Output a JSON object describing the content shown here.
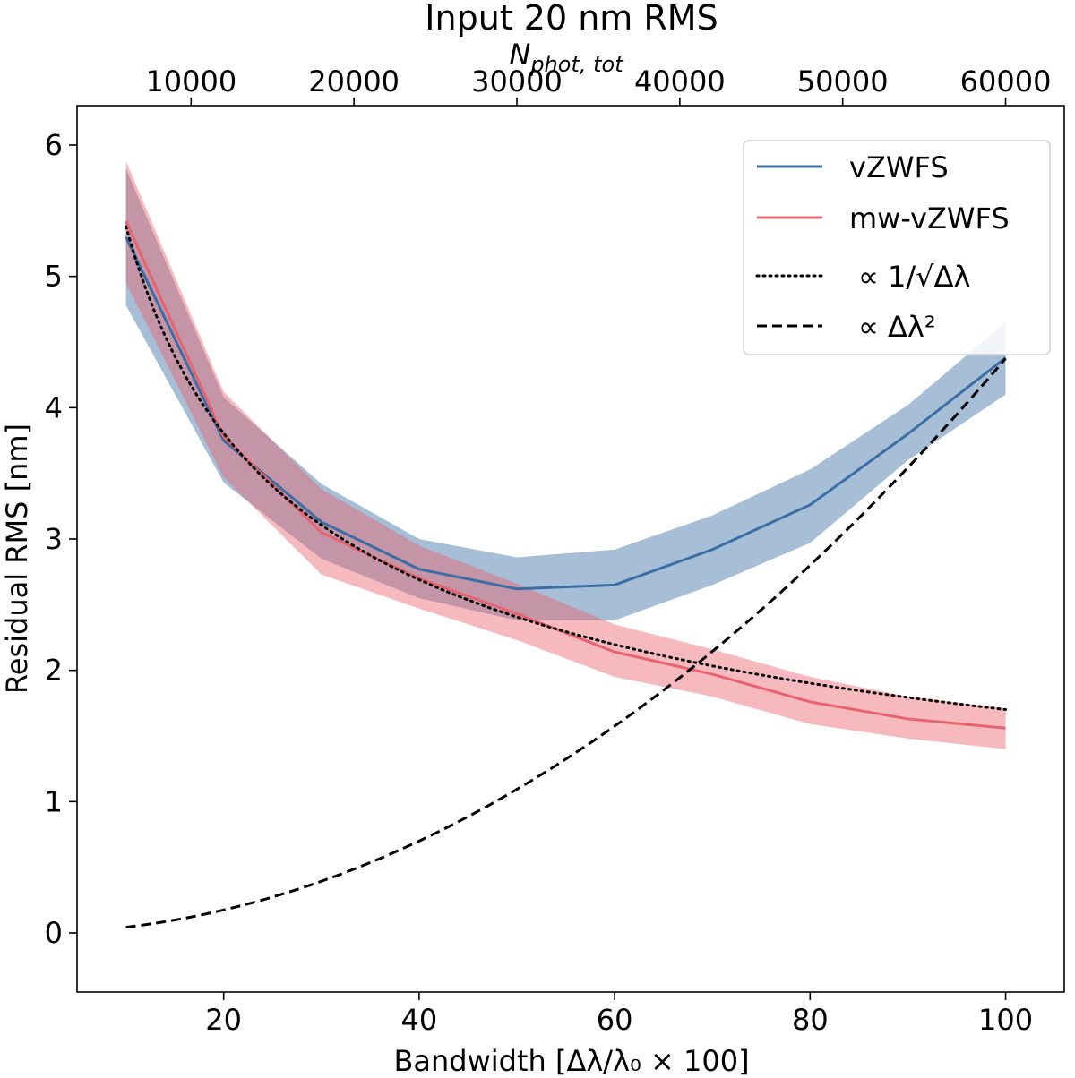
{
  "chart_data": {
    "type": "line",
    "title": "Input 20 nm RMS",
    "top_axis_label": "N_phot, tot",
    "xlabel": "Bandwidth [Δλ/λ₀ × 100]",
    "ylabel": "Residual RMS [nm]",
    "xlim": [
      5,
      106
    ],
    "ylim": [
      -0.45,
      6.3
    ],
    "x_ticks": [
      20,
      40,
      60,
      80,
      100
    ],
    "y_ticks": [
      0,
      1,
      2,
      3,
      4,
      5,
      6
    ],
    "top_ticks": [
      10000,
      20000,
      30000,
      40000,
      50000,
      60000
    ],
    "top_per_bandwidth": 600,
    "legend_position": "upper right",
    "x": [
      10,
      20,
      30,
      40,
      50,
      60,
      70,
      80,
      90,
      100
    ],
    "series": [
      {
        "name": "vZWFS",
        "color": "#3a6ea5",
        "style": "solid",
        "values": [
          5.3,
          3.75,
          3.13,
          2.77,
          2.62,
          2.65,
          2.92,
          3.26,
          3.8,
          4.38
        ],
        "lower": [
          4.78,
          3.43,
          2.85,
          2.55,
          2.38,
          2.38,
          2.65,
          2.97,
          3.6,
          4.1
        ],
        "upper": [
          5.82,
          4.08,
          3.42,
          3.0,
          2.86,
          2.92,
          3.18,
          3.53,
          4.02,
          4.65
        ]
      },
      {
        "name": "mw-vZWFS",
        "color": "#e8636f",
        "style": "solid",
        "values": [
          5.42,
          3.78,
          3.05,
          2.7,
          2.43,
          2.14,
          1.97,
          1.76,
          1.63,
          1.56
        ],
        "lower": [
          4.95,
          3.47,
          2.73,
          2.47,
          2.23,
          1.95,
          1.8,
          1.59,
          1.48,
          1.4
        ],
        "upper": [
          5.88,
          4.12,
          3.38,
          2.95,
          2.66,
          2.35,
          2.16,
          1.95,
          1.8,
          1.71
        ]
      },
      {
        "name": "∝ 1/√Δλ",
        "color": "#000000",
        "style": "dotted",
        "values": [
          5.38,
          3.8,
          3.1,
          2.69,
          2.41,
          2.2,
          2.03,
          1.9,
          1.79,
          1.7
        ]
      },
      {
        "name": "∝ Δλ²",
        "color": "#000000",
        "style": "dashed",
        "values": [
          0.044,
          0.175,
          0.394,
          0.7,
          1.094,
          1.575,
          2.144,
          2.8,
          3.544,
          4.375
        ]
      }
    ]
  }
}
